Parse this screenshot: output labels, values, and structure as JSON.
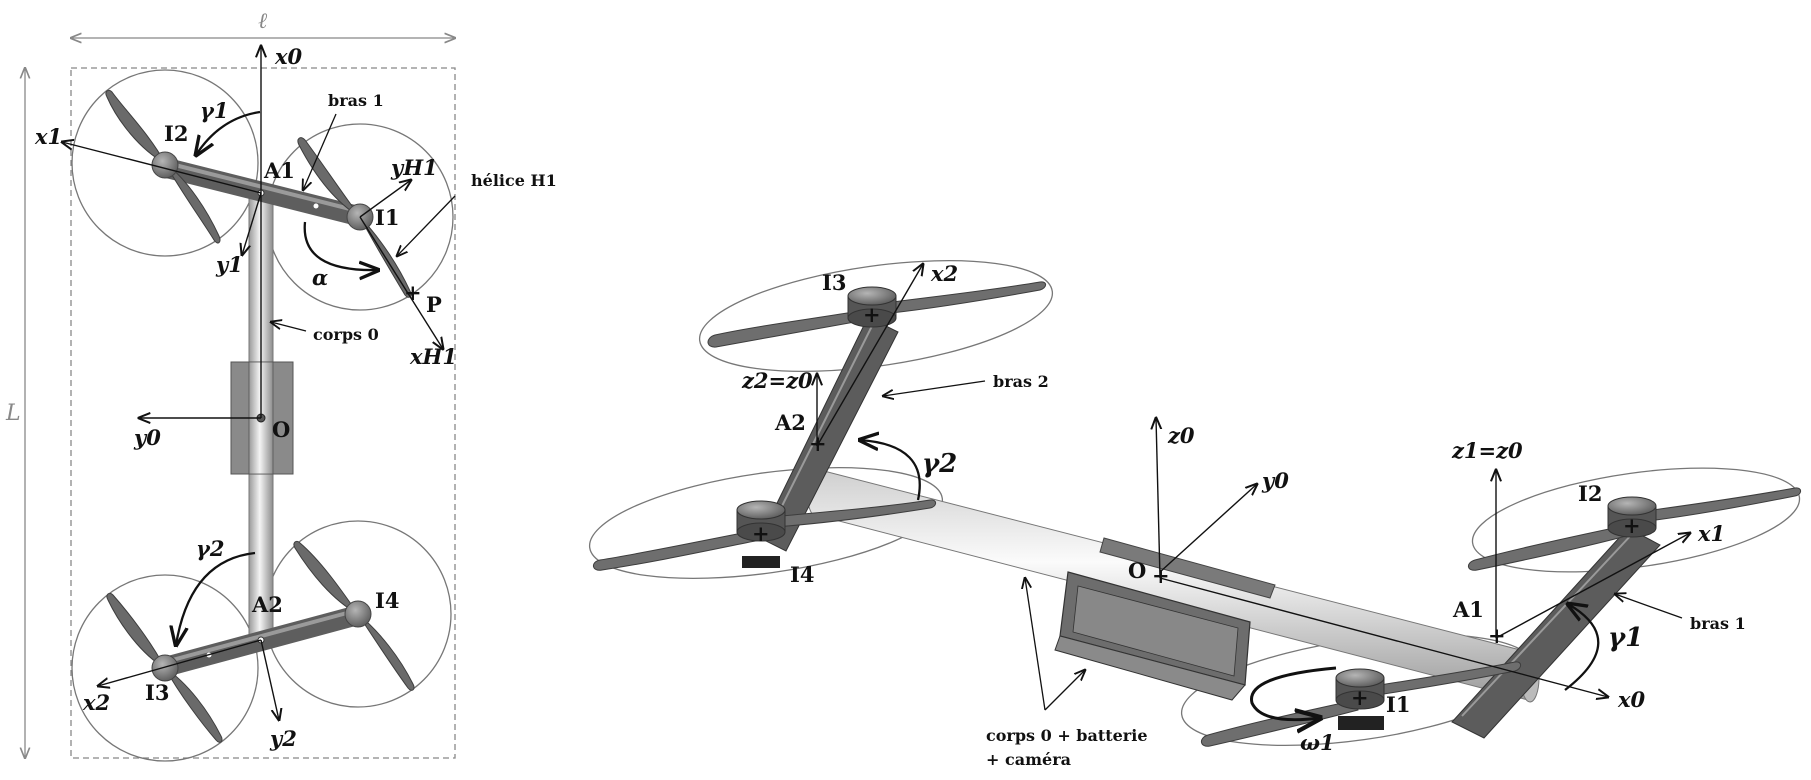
{
  "top_view": {
    "dim_width": "ℓ",
    "dim_length": "L",
    "labels": {
      "x0": "x0",
      "x1": "x1",
      "y1": "y1",
      "y0": "y0",
      "x2": "x2",
      "y2": "y2",
      "yH1": "yH1",
      "xH1": "xH1",
      "gamma1": "γ1",
      "gamma2": "γ2",
      "alpha": "α",
      "I1": "I1",
      "I2": "I2",
      "I3": "I3",
      "I4": "I4",
      "A1": "A1",
      "A2": "A2",
      "O": "O",
      "P": "P"
    },
    "callouts": {
      "bras1": "bras 1",
      "helice": "hélice H1",
      "corps0": "corps 0"
    }
  },
  "iso_view": {
    "labels": {
      "I1": "I1",
      "I2": "I2",
      "I3": "I3",
      "I4": "I4",
      "A1": "A1",
      "A2": "A2",
      "O": "O",
      "x0": "x0",
      "y0": "y0",
      "z0": "z0",
      "x1": "x1",
      "x2": "x2",
      "z2z0": "z2=z0",
      "z1z0": "z1=z0",
      "gamma1": "γ1",
      "gamma2": "γ2",
      "omega1": "ω1"
    },
    "callouts": {
      "bras2": "bras 2",
      "bras1": "bras 1",
      "corps_line1": "corps 0 + batterie",
      "corps_line2": "+ caméra"
    }
  },
  "colors": {
    "arm": "#5d5d5d",
    "hub": "#7a7a7a",
    "blade": "#6b6b6b",
    "ink": "#111111",
    "dim": "#888888"
  }
}
